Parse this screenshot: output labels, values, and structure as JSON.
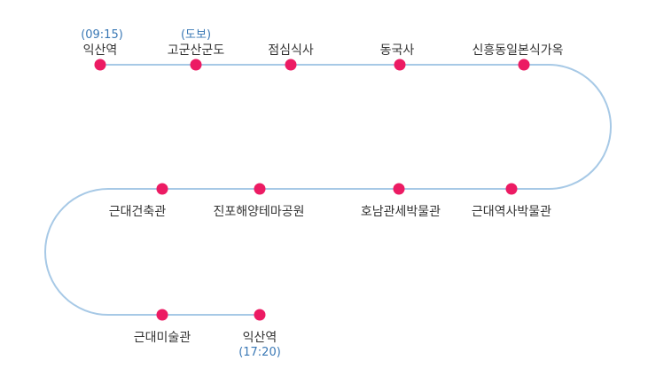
{
  "route": {
    "line_color": "#a7c9e6",
    "dot_color": "#ec1b63",
    "stops": [
      {
        "name": "익산역",
        "note": "(09:15)"
      },
      {
        "name": "고군산군도",
        "note": "(도보)"
      },
      {
        "name": "점심식사",
        "note": ""
      },
      {
        "name": "동국사",
        "note": ""
      },
      {
        "name": "신흥동일본식가옥",
        "note": ""
      },
      {
        "name": "근대역사박물관",
        "note": ""
      },
      {
        "name": "호남관세박물관",
        "note": ""
      },
      {
        "name": "진포해양테마공원",
        "note": ""
      },
      {
        "name": "근대건축관",
        "note": ""
      },
      {
        "name": "근대미술관",
        "note": ""
      },
      {
        "name": "익산역",
        "note": "(17:20)"
      }
    ]
  }
}
